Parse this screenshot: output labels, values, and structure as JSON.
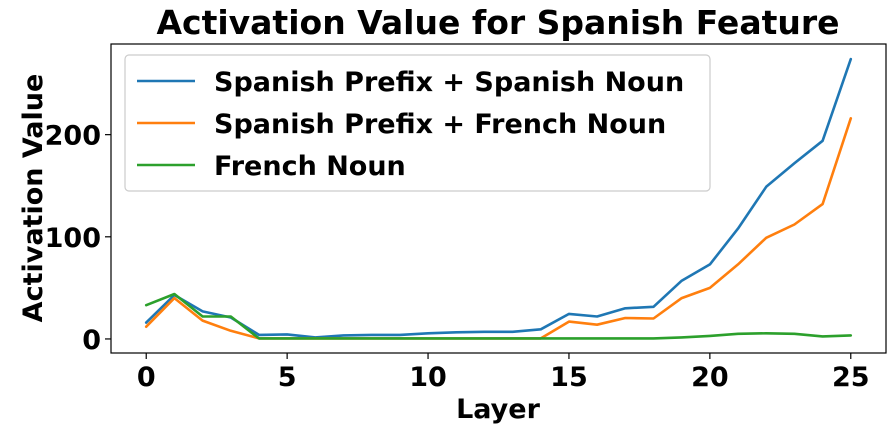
{
  "chart_data": {
    "type": "line",
    "title": "Activation Value for Spanish Feature",
    "xlabel": "Layer",
    "ylabel": "Activation Value",
    "xlim": [
      -1.25,
      26.25
    ],
    "ylim": [
      -13.75,
      288.75
    ],
    "xticks": [
      0,
      5,
      10,
      15,
      20,
      25
    ],
    "yticks": [
      0,
      100,
      200
    ],
    "grid": false,
    "legend_position": "top-left",
    "x": [
      0,
      1,
      2,
      3,
      4,
      5,
      6,
      7,
      8,
      9,
      10,
      11,
      12,
      13,
      14,
      15,
      16,
      17,
      18,
      19,
      20,
      21,
      22,
      23,
      24,
      25
    ],
    "series": [
      {
        "name": "Spanish Prefix + Spanish Noun",
        "color": "#1f77b4",
        "values": [
          16,
          43,
          27,
          21,
          4,
          4.5,
          1.5,
          3.5,
          4,
          4,
          5.5,
          6.5,
          7,
          7,
          9.5,
          24.5,
          22,
          30,
          31.5,
          57,
          73,
          108,
          149,
          172,
          194,
          274
        ]
      },
      {
        "name": "Spanish Prefix + French Noun",
        "color": "#ff7f0e",
        "values": [
          12,
          40,
          18,
          8,
          0.5,
          0.5,
          0.5,
          0.5,
          0.5,
          0.5,
          0.5,
          0.5,
          0.5,
          0.5,
          0.5,
          17,
          14,
          20.5,
          20,
          40,
          50,
          73,
          99,
          112,
          132,
          216
        ]
      },
      {
        "name": "French Noun",
        "color": "#2ca02c",
        "values": [
          33,
          44,
          22,
          22,
          0.5,
          0.5,
          0.5,
          0.5,
          0.5,
          0.5,
          0.5,
          0.5,
          0.5,
          0.5,
          0.5,
          0.5,
          0.5,
          0.5,
          0.5,
          1.5,
          3,
          5,
          5.5,
          5,
          2.5,
          3.5
        ]
      }
    ]
  }
}
